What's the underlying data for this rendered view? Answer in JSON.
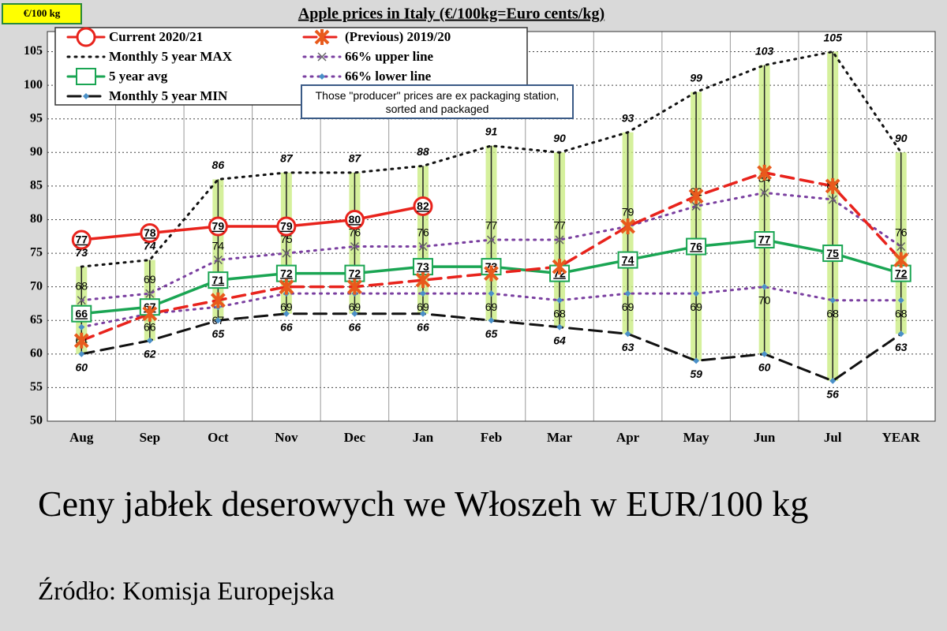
{
  "chart_data": {
    "type": "line",
    "title": "Apple prices in Italy (€/100kg=Euro cents/kg)",
    "unit_label": "€/100 kg",
    "annotation": "Those \"producer\" prices are ex packaging station, sorted and packaged",
    "caption": "Ceny jabłek deserowych we Włoszeh w EUR/100 kg",
    "source": "Źródło: Komisja Europejska",
    "categories": [
      "Aug",
      "Sep",
      "Oct",
      "Nov",
      "Dec",
      "Jan",
      "Feb",
      "Mar",
      "Apr",
      "May",
      "Jun",
      "Jul",
      "YEAR"
    ],
    "ylim": [
      50,
      108
    ],
    "yticks": [
      50,
      55,
      60,
      65,
      70,
      75,
      80,
      85,
      90,
      95,
      100,
      105
    ],
    "grid": true,
    "series": [
      {
        "name": "Current 2020/21",
        "color": "#e8231c",
        "line_style": "solid",
        "marker": "circle",
        "values": [
          77,
          78,
          79,
          79,
          80,
          82,
          null,
          null,
          null,
          null,
          null,
          null,
          null
        ]
      },
      {
        "name": "(Previous) 2019/20",
        "color": "#e8231c",
        "line_style": "dashed",
        "marker": "star",
        "values": [
          62,
          66,
          68,
          70,
          70,
          71,
          72,
          73,
          79,
          83.5,
          87,
          85,
          74
        ]
      },
      {
        "name": "Monthly 5 year MAX",
        "color": "#111111",
        "line_style": "dotted",
        "marker": "none",
        "values": [
          73,
          74,
          86,
          87,
          87,
          88,
          91,
          90,
          93,
          99,
          103,
          105,
          90
        ]
      },
      {
        "name": "66% upper line",
        "color": "#7a3fa0",
        "line_style": "dotted",
        "marker": "x",
        "values": [
          68,
          69,
          74,
          75,
          76,
          76,
          77,
          77,
          79,
          82,
          84,
          83,
          76
        ]
      },
      {
        "name": "5 year avg",
        "color": "#1aa553",
        "line_style": "solid",
        "marker": "square",
        "values": [
          66,
          67,
          71,
          72,
          72,
          73,
          73,
          72,
          74,
          76,
          77,
          75,
          72
        ]
      },
      {
        "name": "66% lower line",
        "color": "#7a3fa0",
        "line_style": "dotted",
        "marker": "diamond",
        "values": [
          64,
          66,
          67,
          69,
          69,
          69,
          69,
          68,
          69,
          69,
          70,
          68,
          68
        ]
      },
      {
        "name": "Monthly 5 year MIN",
        "color": "#111111",
        "line_style": "dashed",
        "marker": "diamond",
        "values": [
          60,
          62,
          65,
          66,
          66,
          66,
          65,
          64,
          63,
          59,
          60,
          56,
          63
        ]
      }
    ]
  }
}
